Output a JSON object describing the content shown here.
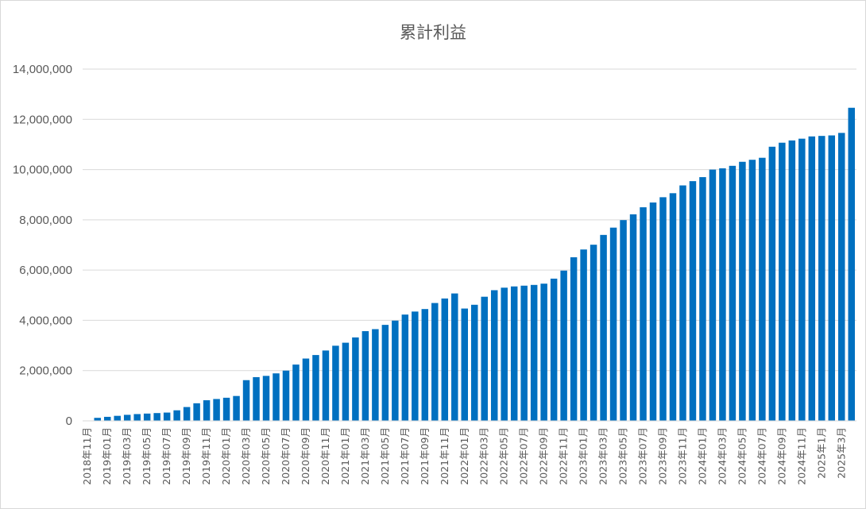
{
  "chart_data": {
    "type": "bar",
    "title": "累計利益",
    "xlabel": "",
    "ylabel": "",
    "ylim": [
      0,
      14000000
    ],
    "yticks": [
      0,
      2000000,
      4000000,
      6000000,
      8000000,
      10000000,
      12000000,
      14000000
    ],
    "ytick_labels": [
      "0",
      "2,000,000",
      "4,000,000",
      "6,000,000",
      "8,000,000",
      "10,000,000",
      "12,000,000",
      "14,000,000"
    ],
    "grid": true,
    "bar_color": "#0070C0",
    "categories": [
      "2018年11月",
      "2018年12月",
      "2019年01月",
      "2019年02月",
      "2019年03月",
      "2019年04月",
      "2019年05月",
      "2019年06月",
      "2019年07月",
      "2019年08月",
      "2019年09月",
      "2019年10月",
      "2019年11月",
      "2019年12月",
      "2020年01月",
      "2020年02月",
      "2020年03月",
      "2020年04月",
      "2020年05月",
      "2020年06月",
      "2020年07月",
      "2020年08月",
      "2020年09月",
      "2020年10月",
      "2020年11月",
      "2020年12月",
      "2021年01月",
      "2021年02月",
      "2021年03月",
      "2021年04月",
      "2021年05月",
      "2021年06月",
      "2021年07月",
      "2021年08月",
      "2021年09月",
      "2021年10月",
      "2021年11月",
      "2021年12月",
      "2022年01月",
      "2022年02月",
      "2022年03月",
      "2022年04月",
      "2022年05月",
      "2022年06月",
      "2022年07月",
      "2022年08月",
      "2022年09月",
      "2022年10月",
      "2022年11月",
      "2022年12月",
      "2023年01月",
      "2023年02月",
      "2023年03月",
      "2023年04月",
      "2023年05月",
      "2023年06月",
      "2023年07月",
      "2023年08月",
      "2023年09月",
      "2023年10月",
      "2023年11月",
      "2023年12月",
      "2024年01月",
      "2024年02月",
      "2024年03月",
      "2024年04月",
      "2024年05月",
      "2024年06月",
      "2024年07月",
      "2024年08月",
      "2024年09月",
      "2024年10月",
      "2024年11月",
      "2024年12月",
      "2025年1月",
      "2025年2月",
      "2025年3月",
      "2025年4月"
    ],
    "visible_tick_labels": [
      "2018年11月",
      "2019年01月",
      "2019年03月",
      "2019年05月",
      "2019年07月",
      "2019年09月",
      "2019年11月",
      "2020年01月",
      "2020年03月",
      "2020年05月",
      "2020年07月",
      "2020年09月",
      "2020年11月",
      "2021年01月",
      "2021年03月",
      "2021年05月",
      "2021年07月",
      "2021年09月",
      "2021年11月",
      "2022年01月",
      "2022年03月",
      "2022年05月",
      "2022年07月",
      "2022年09月",
      "2022年11月",
      "2023年01月",
      "2023年03月",
      "2023年05月",
      "2023年07月",
      "2023年09月",
      "2023年11月",
      "2024年01月",
      "2024年03月",
      "2024年05月",
      "2024年07月",
      "2024年09月",
      "2024年11月",
      "2025年1月",
      "2025年3月"
    ],
    "values": [
      10000,
      120000,
      160000,
      200000,
      240000,
      270000,
      290000,
      310000,
      330000,
      420000,
      550000,
      700000,
      820000,
      870000,
      920000,
      990000,
      1620000,
      1740000,
      1790000,
      1890000,
      2000000,
      2240000,
      2480000,
      2620000,
      2800000,
      2990000,
      3110000,
      3320000,
      3570000,
      3650000,
      3820000,
      3990000,
      4230000,
      4350000,
      4450000,
      4690000,
      4870000,
      5070000,
      4470000,
      4620000,
      4940000,
      5200000,
      5300000,
      5350000,
      5380000,
      5410000,
      5460000,
      5660000,
      5980000,
      6510000,
      6820000,
      7010000,
      7400000,
      7690000,
      7990000,
      8220000,
      8500000,
      8690000,
      8900000,
      9060000,
      9370000,
      9540000,
      9700000,
      10000000,
      10050000,
      10150000,
      10310000,
      10390000,
      10470000,
      10910000,
      11070000,
      11160000,
      11230000,
      11320000,
      11340000,
      11360000,
      11460000,
      12460000
    ]
  }
}
